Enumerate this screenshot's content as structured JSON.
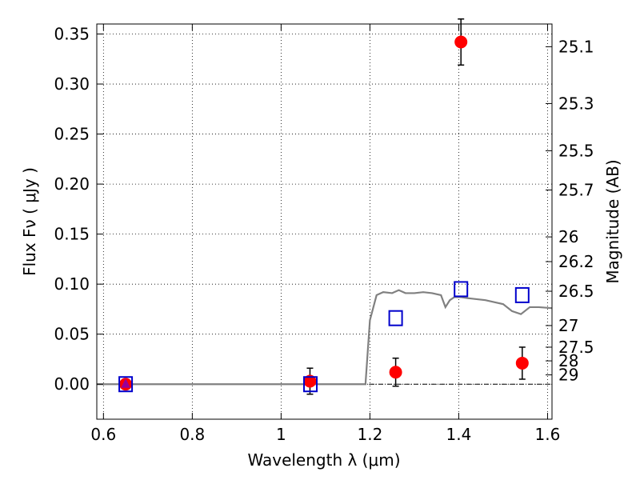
{
  "chart_data": {
    "type": "scatter",
    "xlabel": "Wavelength  λ (μm)",
    "ylabel": "Flux  Fν ( μJy )",
    "ylabel_right": "Magnitude (AB)",
    "xlim": [
      0.585,
      1.61
    ],
    "ylim": [
      -0.035,
      0.36
    ],
    "x_ticks": [
      0.6,
      0.8,
      1.0,
      1.2,
      1.4,
      1.6
    ],
    "x_tick_labels": [
      "0.6",
      "0.8",
      "1",
      "1.2",
      "1.4",
      "1.6"
    ],
    "y_ticks": [
      0.0,
      0.05,
      0.1,
      0.15,
      0.2,
      0.25,
      0.3,
      0.35
    ],
    "y_tick_labels": [
      "0.00",
      "0.05",
      "0.10",
      "0.15",
      "0.20",
      "0.25",
      "0.30",
      "0.35"
    ],
    "right_ticks": [
      {
        "label": "25.1",
        "flux": 0.3373
      },
      {
        "label": "25.3",
        "flux": 0.2805
      },
      {
        "label": "25.5",
        "flux": 0.2333
      },
      {
        "label": "25.7",
        "flux": 0.1941
      },
      {
        "label": "26",
        "flux": 0.1472
      },
      {
        "label": "26.2",
        "flux": 0.1225
      },
      {
        "label": "26.5",
        "flux": 0.0929
      },
      {
        "label": "27",
        "flux": 0.0586
      },
      {
        "label": "27.5",
        "flux": 0.037
      },
      {
        "label": "28",
        "flux": 0.0233
      },
      {
        "label": "29",
        "flux": 0.0093
      }
    ],
    "grid": true,
    "series": [
      {
        "style": "line",
        "color": "#808080",
        "x": [
          0.585,
          1.19,
          1.2,
          1.215,
          1.23,
          1.25,
          1.265,
          1.28,
          1.3,
          1.32,
          1.34,
          1.36,
          1.37,
          1.38,
          1.39,
          1.405,
          1.42,
          1.44,
          1.46,
          1.48,
          1.5,
          1.52,
          1.54,
          1.56,
          1.58,
          1.61
        ],
        "y": [
          0.0,
          0.0,
          0.064,
          0.089,
          0.092,
          0.091,
          0.094,
          0.091,
          0.091,
          0.092,
          0.091,
          0.089,
          0.077,
          0.084,
          0.087,
          0.087,
          0.086,
          0.085,
          0.084,
          0.082,
          0.08,
          0.073,
          0.07,
          0.077,
          0.077,
          0.076
        ]
      },
      {
        "style": "points",
        "marker": "circle",
        "color": "#ff0000",
        "x": [
          0.65,
          1.065,
          1.258,
          1.405,
          1.543
        ],
        "y": [
          0.0,
          0.003,
          0.012,
          0.342,
          0.021
        ],
        "yerr": [
          0.001,
          0.013,
          0.014,
          0.023,
          0.016
        ]
      },
      {
        "style": "points",
        "marker": "open-square",
        "color": "#0000cc",
        "x": [
          0.65,
          1.066,
          1.258,
          1.405,
          1.543
        ],
        "y": [
          0.0,
          0.0,
          0.066,
          0.095,
          0.089
        ]
      },
      {
        "style": "points",
        "marker": "triangle",
        "color": "#990099",
        "x": [
          0.65
        ],
        "y": [
          0.0
        ]
      }
    ],
    "reference_line": {
      "y": 0.0,
      "style": "dash-dot",
      "color": "#000000"
    }
  }
}
